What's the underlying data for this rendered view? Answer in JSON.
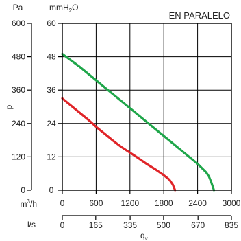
{
  "chart_data": {
    "type": "line",
    "title": "EN PARALELO",
    "xlabel": "q",
    "xlabel_sub": "v",
    "y_unit_left": "Pa",
    "y_unit_main": "mmH",
    "y_unit_main_sub": "2",
    "y_unit_main_tail": "O",
    "ylabel": "p",
    "xlim": [
      0,
      3000
    ],
    "ylim": [
      0,
      60
    ],
    "grid": true,
    "x_ticks": [
      0,
      600,
      1200,
      1800,
      2400,
      3000
    ],
    "x_tick_labels": [
      "0",
      "600",
      "1200",
      "1800",
      "2400",
      "3000"
    ],
    "x_unit": "m",
    "x_unit_sup": "3",
    "x_unit_tail": "/h",
    "y_ticks": [
      0,
      12,
      24,
      36,
      48,
      60
    ],
    "y_tick_labels": [
      "0",
      "12",
      "24",
      "36",
      "48",
      "60"
    ],
    "pa_ticks": [
      0,
      120,
      240,
      360,
      480,
      600
    ],
    "pa_tick_labels": [
      "0",
      "120",
      "240",
      "360",
      "480",
      "600"
    ],
    "ls_unit": "l/s",
    "ls_ticks": [
      0,
      165,
      335,
      500,
      670,
      835
    ],
    "ls_tick_labels": [
      "0",
      "165",
      "335",
      "500",
      "670",
      "835"
    ],
    "series": [
      {
        "color": "#1fa64a",
        "x": [
          0,
          300,
          600,
          900,
          1200,
          1500,
          1800,
          2100,
          2400,
          2550,
          2600,
          2640,
          2690
        ],
        "y": [
          49,
          44.5,
          39.5,
          34.5,
          29.5,
          24.5,
          19.5,
          14.5,
          9.5,
          6.5,
          5,
          3,
          0
        ]
      },
      {
        "color": "#e02428",
        "x": [
          0,
          150,
          300,
          450,
          600,
          750,
          900,
          1050,
          1200,
          1350,
          1500,
          1650,
          1800,
          1900,
          1960,
          2000
        ],
        "y": [
          33,
          30.5,
          28,
          25.5,
          22.8,
          20.3,
          17.8,
          15.5,
          13.5,
          11.5,
          9.4,
          7.5,
          5.4,
          3.8,
          2,
          0
        ]
      }
    ]
  }
}
